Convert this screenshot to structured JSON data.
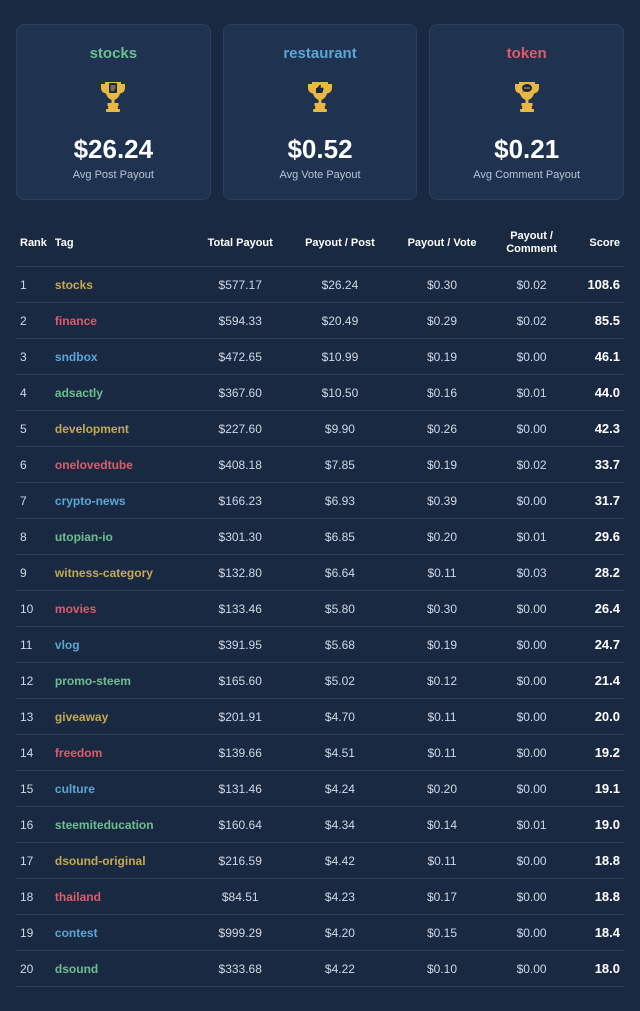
{
  "colors": {
    "green": "#6bbf8e",
    "blue": "#5aa6d6",
    "red": "#e05a6a",
    "olive": "#c4a94f",
    "trophy_gold": "#e8b842",
    "text_light": "#d0d8e4"
  },
  "cards": [
    {
      "title": "stocks",
      "title_color": "#6bbf8e",
      "icon": "file",
      "value": "$26.24",
      "sub": "Avg Post Payout"
    },
    {
      "title": "restaurant",
      "title_color": "#5aa6d6",
      "icon": "thumb",
      "value": "$0.52",
      "sub": "Avg Vote Payout"
    },
    {
      "title": "token",
      "title_color": "#e05a6a",
      "icon": "chat",
      "value": "$0.21",
      "sub": "Avg Comment Payout"
    }
  ],
  "table": {
    "headers": {
      "rank": "Rank",
      "tag": "Tag",
      "total": "Total Payout",
      "per_post": "Payout / Post",
      "per_vote": "Payout / Vote",
      "per_comment_l1": "Payout /",
      "per_comment_l2": "Comment",
      "score": "Score"
    },
    "rows": [
      {
        "rank": "1",
        "tag": "stocks",
        "tag_color": "#c4a94f",
        "total": "$577.17",
        "per_post": "$26.24",
        "per_vote": "$0.30",
        "per_comment": "$0.02",
        "score": "108.6"
      },
      {
        "rank": "2",
        "tag": "finance",
        "tag_color": "#e05a6a",
        "total": "$594.33",
        "per_post": "$20.49",
        "per_vote": "$0.29",
        "per_comment": "$0.02",
        "score": "85.5"
      },
      {
        "rank": "3",
        "tag": "sndbox",
        "tag_color": "#5aa6d6",
        "total": "$472.65",
        "per_post": "$10.99",
        "per_vote": "$0.19",
        "per_comment": "$0.00",
        "score": "46.1"
      },
      {
        "rank": "4",
        "tag": "adsactly",
        "tag_color": "#6bbf8e",
        "total": "$367.60",
        "per_post": "$10.50",
        "per_vote": "$0.16",
        "per_comment": "$0.01",
        "score": "44.0"
      },
      {
        "rank": "5",
        "tag": "development",
        "tag_color": "#c4a94f",
        "total": "$227.60",
        "per_post": "$9.90",
        "per_vote": "$0.26",
        "per_comment": "$0.00",
        "score": "42.3"
      },
      {
        "rank": "6",
        "tag": "onelovedtube",
        "tag_color": "#e05a6a",
        "total": "$408.18",
        "per_post": "$7.85",
        "per_vote": "$0.19",
        "per_comment": "$0.02",
        "score": "33.7"
      },
      {
        "rank": "7",
        "tag": "crypto-news",
        "tag_color": "#5aa6d6",
        "total": "$166.23",
        "per_post": "$6.93",
        "per_vote": "$0.39",
        "per_comment": "$0.00",
        "score": "31.7"
      },
      {
        "rank": "8",
        "tag": "utopian-io",
        "tag_color": "#6bbf8e",
        "total": "$301.30",
        "per_post": "$6.85",
        "per_vote": "$0.20",
        "per_comment": "$0.01",
        "score": "29.6"
      },
      {
        "rank": "9",
        "tag": "witness-category",
        "tag_color": "#c4a94f",
        "total": "$132.80",
        "per_post": "$6.64",
        "per_vote": "$0.11",
        "per_comment": "$0.03",
        "score": "28.2"
      },
      {
        "rank": "10",
        "tag": "movies",
        "tag_color": "#e05a6a",
        "total": "$133.46",
        "per_post": "$5.80",
        "per_vote": "$0.30",
        "per_comment": "$0.00",
        "score": "26.4"
      },
      {
        "rank": "11",
        "tag": "vlog",
        "tag_color": "#5aa6d6",
        "total": "$391.95",
        "per_post": "$5.68",
        "per_vote": "$0.19",
        "per_comment": "$0.00",
        "score": "24.7"
      },
      {
        "rank": "12",
        "tag": "promo-steem",
        "tag_color": "#6bbf8e",
        "total": "$165.60",
        "per_post": "$5.02",
        "per_vote": "$0.12",
        "per_comment": "$0.00",
        "score": "21.4"
      },
      {
        "rank": "13",
        "tag": "giveaway",
        "tag_color": "#c4a94f",
        "total": "$201.91",
        "per_post": "$4.70",
        "per_vote": "$0.11",
        "per_comment": "$0.00",
        "score": "20.0"
      },
      {
        "rank": "14",
        "tag": "freedom",
        "tag_color": "#e05a6a",
        "total": "$139.66",
        "per_post": "$4.51",
        "per_vote": "$0.11",
        "per_comment": "$0.00",
        "score": "19.2"
      },
      {
        "rank": "15",
        "tag": "culture",
        "tag_color": "#5aa6d6",
        "total": "$131.46",
        "per_post": "$4.24",
        "per_vote": "$0.20",
        "per_comment": "$0.00",
        "score": "19.1"
      },
      {
        "rank": "16",
        "tag": "steemiteducation",
        "tag_color": "#6bbf8e",
        "total": "$160.64",
        "per_post": "$4.34",
        "per_vote": "$0.14",
        "per_comment": "$0.01",
        "score": "19.0"
      },
      {
        "rank": "17",
        "tag": "dsound-original",
        "tag_color": "#c4a94f",
        "total": "$216.59",
        "per_post": "$4.42",
        "per_vote": "$0.11",
        "per_comment": "$0.00",
        "score": "18.8"
      },
      {
        "rank": "18",
        "tag": "thailand",
        "tag_color": "#e05a6a",
        "total": "$84.51",
        "per_post": "$4.23",
        "per_vote": "$0.17",
        "per_comment": "$0.00",
        "score": "18.8"
      },
      {
        "rank": "19",
        "tag": "contest",
        "tag_color": "#5aa6d6",
        "total": "$999.29",
        "per_post": "$4.20",
        "per_vote": "$0.15",
        "per_comment": "$0.00",
        "score": "18.4"
      },
      {
        "rank": "20",
        "tag": "dsound",
        "tag_color": "#6bbf8e",
        "total": "$333.68",
        "per_post": "$4.22",
        "per_vote": "$0.10",
        "per_comment": "$0.00",
        "score": "18.0"
      }
    ]
  }
}
